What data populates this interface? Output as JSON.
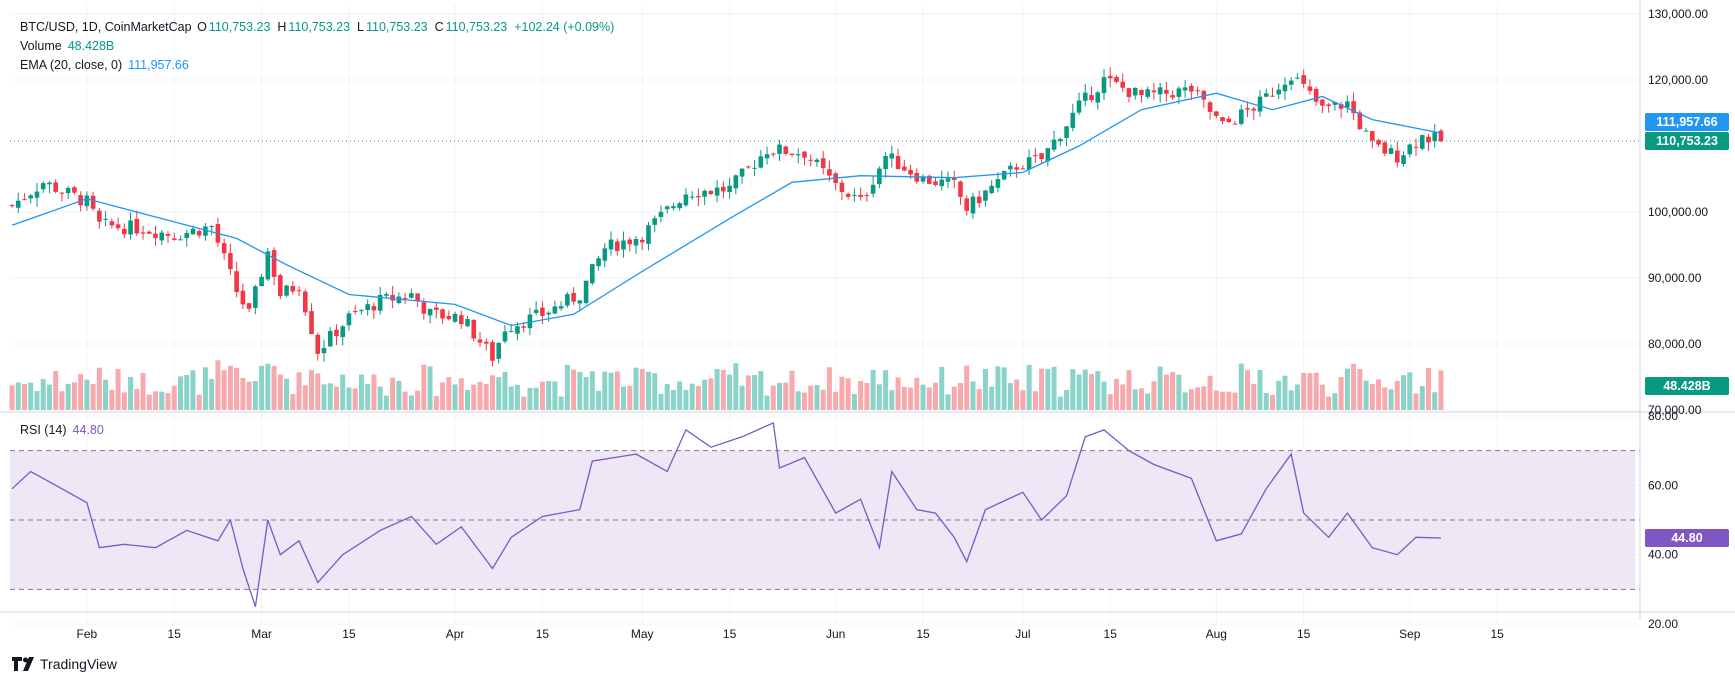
{
  "header": {
    "symbol": "BTC/USD, 1D, CoinMarketCap",
    "open_label": "O",
    "open": "110,753.23",
    "high_label": "H",
    "high": "110,753.23",
    "low_label": "L",
    "low": "110,753.23",
    "close_label": "C",
    "close": "110,753.23",
    "change": "+102.24 (+0.09%)",
    "volume_label": "Volume",
    "volume": "48.428B",
    "ema_label": "EMA (20, close, 0)",
    "ema": "111,957.66",
    "rsi_label": "RSI (14)",
    "rsi": "44.80"
  },
  "tags": {
    "ema_price": "111,957.66",
    "last_price": "110,753.23",
    "volume": "48.428B",
    "rsi": "44.80"
  },
  "brand": "TradingView",
  "colors": {
    "up": "#089981",
    "down": "#f23645",
    "up_vol": "#8ad3c8",
    "down_vol": "#f7a9ae",
    "ema": "#2196f3",
    "rsi": "#7e57c2",
    "rsi_band": "#ede7f6"
  },
  "chart_data": [
    {
      "type": "candlestick",
      "title": "BTC/USD, 1D, CoinMarketCap",
      "y_ticks": [
        "130,000.00",
        "120,000.00",
        "100,000.00",
        "90,000.00",
        "80,000.00",
        "70,000.00"
      ],
      "ylim": [
        70000,
        130000
      ],
      "x_ticks": [
        "Feb",
        "15",
        "Mar",
        "15",
        "Apr",
        "15",
        "May",
        "15",
        "Jun",
        "15",
        "Jul",
        "15",
        "Aug",
        "15",
        "Sep",
        "15"
      ],
      "last_price": 110753.23,
      "ema_last": 111957.66,
      "close_points": [
        [
          "Jan 20",
          101000
        ],
        [
          "Jan 25",
          104500
        ],
        [
          "Feb 1",
          101500
        ],
        [
          "Feb 3",
          98000
        ],
        [
          "Feb 10",
          97500
        ],
        [
          "Feb 15",
          96500
        ],
        [
          "Feb 21",
          97800
        ],
        [
          "Feb 25",
          88000
        ],
        [
          "Feb 27",
          84500
        ],
        [
          "Mar 2",
          94000
        ],
        [
          "Mar 4",
          87500
        ],
        [
          "Mar 7",
          89000
        ],
        [
          "Mar 10",
          79000
        ],
        [
          "Mar 15",
          84000
        ],
        [
          "Mar 20",
          86500
        ],
        [
          "Mar 25",
          87500
        ],
        [
          "Mar 28",
          84500
        ],
        [
          "Apr 2",
          84000
        ],
        [
          "Apr 7",
          78000
        ],
        [
          "Apr 9",
          82500
        ],
        [
          "Apr 15",
          84500
        ],
        [
          "Apr 21",
          87500
        ],
        [
          "Apr 25",
          94500
        ],
        [
          "May 1",
          96500
        ],
        [
          "May 8",
          103000
        ],
        [
          "May 15",
          103500
        ],
        [
          "May 21",
          109500
        ],
        [
          "May 27",
          109000
        ],
        [
          "Jun 1",
          104000
        ],
        [
          "Jun 5",
          101500
        ],
        [
          "Jun 9",
          108500
        ],
        [
          "Jun 15",
          105000
        ],
        [
          "Jun 20",
          104000
        ],
        [
          "Jun 22",
          100500
        ],
        [
          "Jun 30",
          107000
        ],
        [
          "Jul 4",
          108000
        ],
        [
          "Jul 10",
          116000
        ],
        [
          "Jul 14",
          120000
        ],
        [
          "Jul 20",
          117500
        ],
        [
          "Jul 28",
          118500
        ],
        [
          "Aug 2",
          113000
        ],
        [
          "Aug 8",
          116500
        ],
        [
          "Aug 13",
          121000
        ],
        [
          "Aug 18",
          115500
        ],
        [
          "Aug 22",
          116500
        ],
        [
          "Aug 26",
          110000
        ],
        [
          "Aug 30",
          108500
        ],
        [
          "Sep 3",
          111500
        ],
        [
          "Sep 6",
          110753
        ]
      ],
      "ema_points": [
        [
          "Jan 20",
          98000
        ],
        [
          "Feb 1",
          102000
        ],
        [
          "Feb 15",
          98500
        ],
        [
          "Feb 25",
          96000
        ],
        [
          "Mar 5",
          92000
        ],
        [
          "Mar 15",
          87500
        ],
        [
          "Apr 1",
          86000
        ],
        [
          "Apr 10",
          82800
        ],
        [
          "Apr 20",
          84500
        ],
        [
          "May 1",
          91000
        ],
        [
          "May 15",
          99000
        ],
        [
          "May 25",
          104500
        ],
        [
          "Jun 5",
          105500
        ],
        [
          "Jun 20",
          105200
        ],
        [
          "Jul 1",
          106000
        ],
        [
          "Jul 10",
          110000
        ],
        [
          "Jul 20",
          115500
        ],
        [
          "Aug 1",
          118000
        ],
        [
          "Aug 10",
          115500
        ],
        [
          "Aug 18",
          117500
        ],
        [
          "Aug 26",
          114000
        ],
        [
          "Sep 6",
          111958
        ]
      ]
    },
    {
      "type": "bar",
      "title": "Volume",
      "last_value": "48.428B"
    },
    {
      "type": "line",
      "title": "RSI (14)",
      "y_ticks": [
        "80.00",
        "60.00",
        "40.00",
        "20.00"
      ],
      "ylim": [
        20,
        80
      ],
      "bands": [
        30,
        50,
        70
      ],
      "last_value": 44.8,
      "points": [
        [
          "Jan 20",
          59
        ],
        [
          "Jan 23",
          64
        ],
        [
          "Jan 27",
          60
        ],
        [
          "Feb 1",
          55
        ],
        [
          "Feb 3",
          42
        ],
        [
          "Feb 7",
          43
        ],
        [
          "Feb 12",
          42
        ],
        [
          "Feb 17",
          47
        ],
        [
          "Feb 22",
          44
        ],
        [
          "Feb 24",
          50
        ],
        [
          "Feb 26",
          36
        ],
        [
          "Feb 28",
          25
        ],
        [
          "Mar 2",
          50
        ],
        [
          "Mar 4",
          40
        ],
        [
          "Mar 7",
          44
        ],
        [
          "Mar 10",
          32
        ],
        [
          "Mar 14",
          40
        ],
        [
          "Mar 20",
          47
        ],
        [
          "Mar 25",
          51
        ],
        [
          "Mar 29",
          43
        ],
        [
          "Apr 2",
          48
        ],
        [
          "Apr 7",
          36
        ],
        [
          "Apr 10",
          45
        ],
        [
          "Apr 15",
          51
        ],
        [
          "Apr 21",
          53
        ],
        [
          "Apr 23",
          67
        ],
        [
          "Apr 30",
          69
        ],
        [
          "May 5",
          64
        ],
        [
          "May 8",
          76
        ],
        [
          "May 12",
          71
        ],
        [
          "May 17",
          74
        ],
        [
          "May 22",
          78
        ],
        [
          "May 23",
          65
        ],
        [
          "May 27",
          68
        ],
        [
          "Jun 1",
          52
        ],
        [
          "Jun 5",
          56
        ],
        [
          "Jun 8",
          42
        ],
        [
          "Jun 10",
          64
        ],
        [
          "Jun 14",
          53
        ],
        [
          "Jun 17",
          52
        ],
        [
          "Jun 20",
          45
        ],
        [
          "Jun 22",
          38
        ],
        [
          "Jun 25",
          53
        ],
        [
          "Jul 1",
          58
        ],
        [
          "Jul 4",
          50
        ],
        [
          "Jul 8",
          57
        ],
        [
          "Jul 11",
          74
        ],
        [
          "Jul 14",
          76
        ],
        [
          "Jul 18",
          70
        ],
        [
          "Jul 22",
          66
        ],
        [
          "Jul 28",
          62
        ],
        [
          "Aug 1",
          44
        ],
        [
          "Aug 5",
          46
        ],
        [
          "Aug 9",
          59
        ],
        [
          "Aug 13",
          69
        ],
        [
          "Aug 15",
          52
        ],
        [
          "Aug 19",
          45
        ],
        [
          "Aug 22",
          52
        ],
        [
          "Aug 26",
          42
        ],
        [
          "Aug 30",
          40
        ],
        [
          "Sep 2",
          45
        ],
        [
          "Sep 6",
          44.8
        ]
      ]
    }
  ]
}
